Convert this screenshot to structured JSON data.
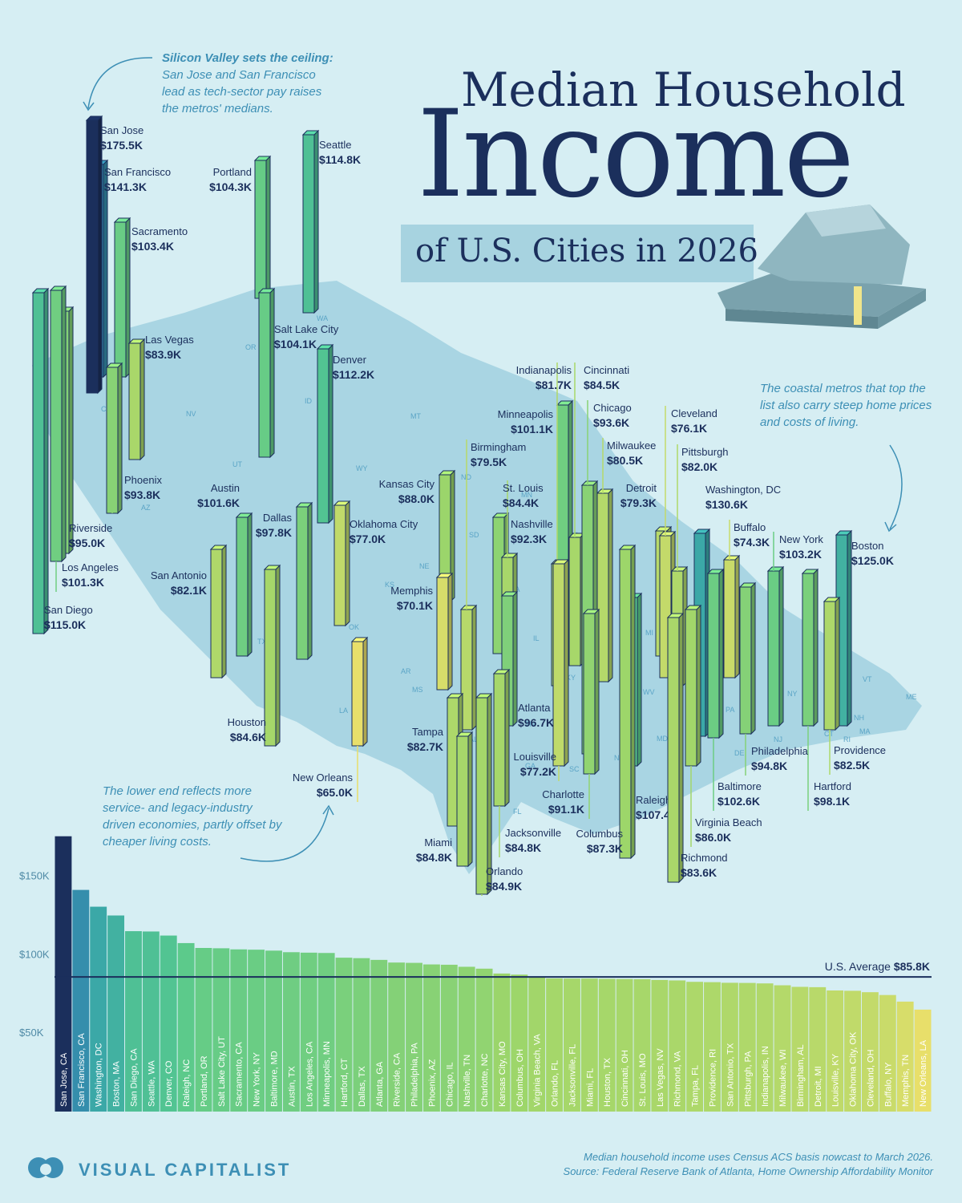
{
  "title": {
    "line1": "Median Household",
    "line2": "Income",
    "line3": "of U.S. Cities in 2026"
  },
  "annotations": {
    "silicon_bold": "Silicon Valley sets the ceiling:",
    "silicon_text": "San Jose and San Francisco lead as tech-sector pay raises the metros' medians.",
    "coastal": "The coastal metros that top the list also carry steep home prices and costs of living.",
    "lower": "The lower end reflects more service- and legacy-industry driven economies, partly offset by cheaper living costs."
  },
  "state_abbr": [
    "WA",
    "OR",
    "CA",
    "NV",
    "ID",
    "UT",
    "AZ",
    "MT",
    "WY",
    "CO",
    "NM",
    "ND",
    "SD",
    "NE",
    "KS",
    "OK",
    "TX",
    "MN",
    "IA",
    "MO",
    "AR",
    "LA",
    "WI",
    "IL",
    "MS",
    "MI",
    "IN",
    "KY",
    "TN",
    "AL",
    "GA",
    "FL",
    "OH",
    "WV",
    "VA",
    "NC",
    "SC",
    "PA",
    "NY",
    "VT",
    "NH",
    "ME",
    "MA",
    "CT",
    "RI",
    "NJ",
    "DE",
    "MD"
  ],
  "average": {
    "label": "U.S. Average",
    "value_label": "$85.8K",
    "value": 85.8
  },
  "chart_data": [
    {
      "type": "bar",
      "title": "",
      "xlabel": "",
      "ylabel": "",
      "value_unit": "thousand USD",
      "ylim": [
        0,
        180
      ],
      "yticks": [
        50,
        100,
        150
      ],
      "ytick_labels": [
        "$50K",
        "$100K",
        "$150K"
      ],
      "grid": false,
      "reference_line": {
        "label": "U.S. Average",
        "value": 85.8
      },
      "categories": [
        "San Jose, CA",
        "San Francisco, CA",
        "Washington, DC",
        "Boston, MA",
        "San Diego, CA",
        "Seattle, WA",
        "Denver, CO",
        "Raleigh, NC",
        "Portland, OR",
        "Salt Lake City, UT",
        "Sacramento, CA",
        "New York, NY",
        "Baltimore, MD",
        "Austin, TX",
        "Los Angeles, CA",
        "Minneapolis, MN",
        "Hartford, CT",
        "Dallas, TX",
        "Atlanta, GA",
        "Riverside, CA",
        "Philadelphia, PA",
        "Phoenix, AZ",
        "Chicago, IL",
        "Nashville, TN",
        "Charlotte, NC",
        "Kansas City, MO",
        "Columbus, OH",
        "Virginia Beach, VA",
        "Orlando, FL",
        "Jacksonville, FL",
        "Miami, FL",
        "Houston, TX",
        "Cincinnati, OH",
        "St. Louis, MO",
        "Las Vegas, NV",
        "Richmond, VA",
        "Tampa, FL",
        "Providence, RI",
        "San Antonio, TX",
        "Pittsburgh, PA",
        "Indianapolis, IN",
        "Milwaukee, WI",
        "Birmingham, AL",
        "Detroit, MI",
        "Louisville, KY",
        "Oklahoma City, OK",
        "Cleveland, OH",
        "Buffalo, NY",
        "Memphis, TN",
        "New Orleans, LA"
      ],
      "values": [
        175.5,
        141.3,
        130.6,
        125.0,
        115.0,
        114.8,
        112.2,
        107.4,
        104.3,
        104.1,
        103.4,
        103.2,
        102.6,
        101.6,
        101.3,
        101.1,
        98.1,
        97.8,
        96.7,
        95.0,
        94.8,
        93.8,
        93.6,
        92.3,
        91.1,
        88.0,
        87.3,
        86.0,
        84.9,
        84.8,
        84.8,
        84.6,
        84.5,
        84.4,
        83.9,
        83.6,
        82.7,
        82.5,
        82.1,
        82.0,
        81.7,
        80.5,
        79.5,
        79.3,
        77.2,
        77.0,
        76.1,
        74.3,
        70.1,
        65.0
      ]
    },
    {
      "type": "bar",
      "title": "",
      "variant": "map-pillars",
      "value_unit": "thousand USD",
      "cities": [
        {
          "name": "San Jose",
          "value": 175.5,
          "label": "$175.5K"
        },
        {
          "name": "San Francisco",
          "value": 141.3,
          "label": "$141.3K"
        },
        {
          "name": "Washington, DC",
          "value": 130.6,
          "label": "$130.6K"
        },
        {
          "name": "Boston",
          "value": 125.0,
          "label": "$125.0K"
        },
        {
          "name": "San Diego",
          "value": 115.0,
          "label": "$115.0K"
        },
        {
          "name": "Seattle",
          "value": 114.8,
          "label": "$114.8K"
        },
        {
          "name": "Denver",
          "value": 112.2,
          "label": "$112.2K"
        },
        {
          "name": "Raleigh",
          "value": 107.4,
          "label": "$107.4K"
        },
        {
          "name": "Portland",
          "value": 104.3,
          "label": "$104.3K"
        },
        {
          "name": "Salt Lake City",
          "value": 104.1,
          "label": "$104.1K"
        },
        {
          "name": "Sacramento",
          "value": 103.4,
          "label": "$103.4K"
        },
        {
          "name": "New York",
          "value": 103.2,
          "label": "$103.2K"
        },
        {
          "name": "Baltimore",
          "value": 102.6,
          "label": "$102.6K"
        },
        {
          "name": "Austin",
          "value": 101.6,
          "label": "$101.6K"
        },
        {
          "name": "Los Angeles",
          "value": 101.3,
          "label": "$101.3K"
        },
        {
          "name": "Minneapolis",
          "value": 101.1,
          "label": "$101.1K"
        },
        {
          "name": "Hartford",
          "value": 98.1,
          "label": "$98.1K"
        },
        {
          "name": "Dallas",
          "value": 97.8,
          "label": "$97.8K"
        },
        {
          "name": "Atlanta",
          "value": 96.7,
          "label": "$96.7K"
        },
        {
          "name": "Riverside",
          "value": 95.0,
          "label": "$95.0K"
        },
        {
          "name": "Philadelphia",
          "value": 94.8,
          "label": "$94.8K"
        },
        {
          "name": "Phoenix",
          "value": 93.8,
          "label": "$93.8K"
        },
        {
          "name": "Chicago",
          "value": 93.6,
          "label": "$93.6K"
        },
        {
          "name": "Nashville",
          "value": 92.3,
          "label": "$92.3K"
        },
        {
          "name": "Charlotte",
          "value": 91.1,
          "label": "$91.1K"
        },
        {
          "name": "Kansas City",
          "value": 88.0,
          "label": "$88.0K"
        },
        {
          "name": "Columbus",
          "value": 87.3,
          "label": "$87.3K"
        },
        {
          "name": "Virginia Beach",
          "value": 86.0,
          "label": "$86.0K"
        },
        {
          "name": "Orlando",
          "value": 84.9,
          "label": "$84.9K"
        },
        {
          "name": "Jacksonville",
          "value": 84.8,
          "label": "$84.8K"
        },
        {
          "name": "Miami",
          "value": 84.8,
          "label": "$84.8K"
        },
        {
          "name": "Houston",
          "value": 84.6,
          "label": "$84.6K"
        },
        {
          "name": "Cincinnati",
          "value": 84.5,
          "label": "$84.5K"
        },
        {
          "name": "St. Louis",
          "value": 84.4,
          "label": "$84.4K"
        },
        {
          "name": "Las Vegas",
          "value": 83.9,
          "label": "$83.9K"
        },
        {
          "name": "Richmond",
          "value": 83.6,
          "label": "$83.6K"
        },
        {
          "name": "Tampa",
          "value": 82.7,
          "label": "$82.7K"
        },
        {
          "name": "Providence",
          "value": 82.5,
          "label": "$82.5K"
        },
        {
          "name": "San Antonio",
          "value": 82.1,
          "label": "$82.1K"
        },
        {
          "name": "Pittsburgh",
          "value": 82.0,
          "label": "$82.0K"
        },
        {
          "name": "Indianapolis",
          "value": 81.7,
          "label": "$81.7K"
        },
        {
          "name": "Milwaukee",
          "value": 80.5,
          "label": "$80.5K"
        },
        {
          "name": "Birmingham",
          "value": 79.5,
          "label": "$79.5K"
        },
        {
          "name": "Detroit",
          "value": 79.3,
          "label": "$79.3K"
        },
        {
          "name": "Louisville",
          "value": 77.2,
          "label": "$77.2K"
        },
        {
          "name": "Oklahoma City",
          "value": 77.0,
          "label": "$77.0K"
        },
        {
          "name": "Cleveland",
          "value": 76.1,
          "label": "$76.1K"
        },
        {
          "name": "Buffalo",
          "value": 74.3,
          "label": "$74.3K"
        },
        {
          "name": "Memphis",
          "value": 70.1,
          "label": "$70.1K"
        },
        {
          "name": "New Orleans",
          "value": 65.0,
          "label": "$65.0K"
        }
      ]
    }
  ],
  "colors": {
    "background": "#d6eef3",
    "map_fill": "#a9d5e3",
    "title": "#1b2f5c",
    "accent": "#3d8fb5",
    "scale": [
      "#1b2f5c",
      "#2f6fb0",
      "#3aa7a8",
      "#56c98e",
      "#9ed66a",
      "#e8df6a"
    ]
  },
  "footer": {
    "brand": "VISUAL CAPITALIST",
    "note_line1": "Median household income uses Census ACS basis nowcast to March 2026.",
    "note_line2": "Source: Federal Reserve Bank of Atlanta, Home Ownership Affordability Monitor"
  }
}
